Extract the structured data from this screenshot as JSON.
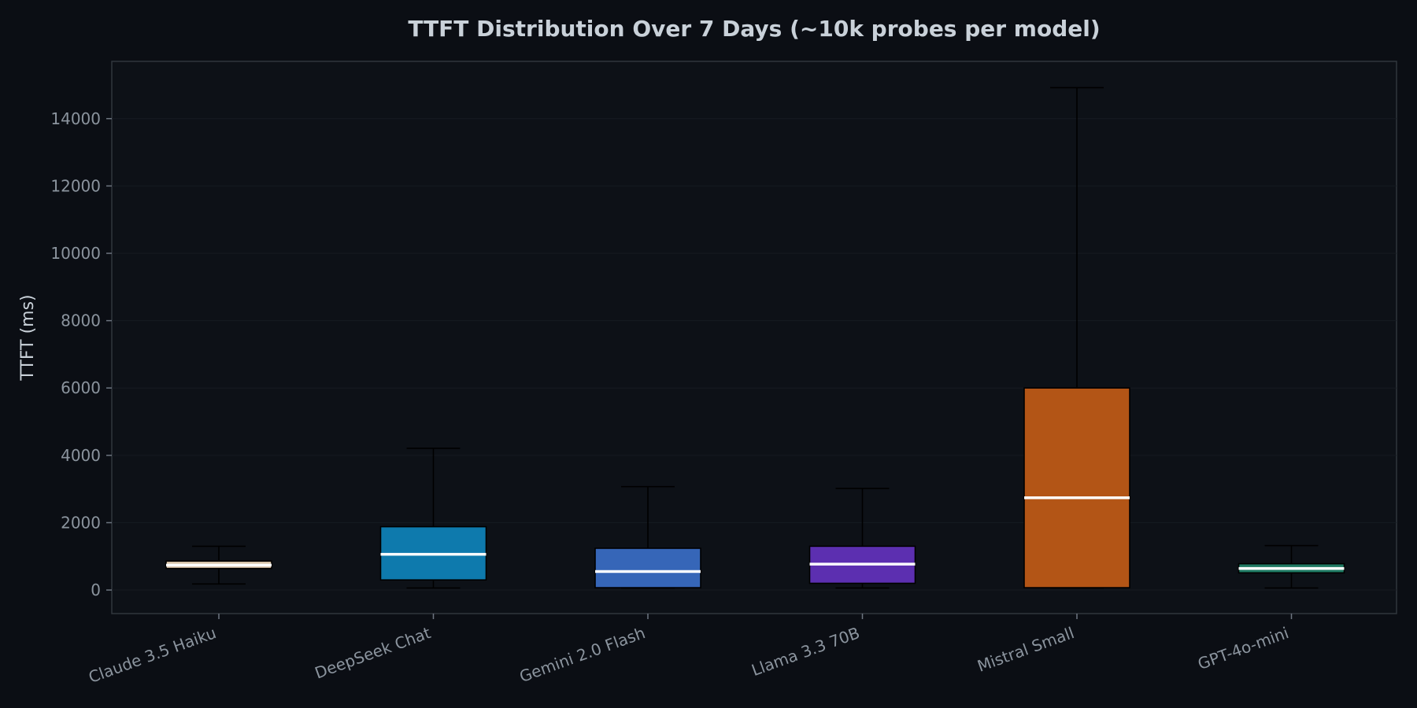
{
  "chart_data": {
    "type": "box",
    "title": "TTFT Distribution Over 7 Days (~10k probes per model)",
    "xlabel": "",
    "ylabel": "TTFT (ms)",
    "ylim": [
      -700,
      15700
    ],
    "yticks": [
      0,
      2000,
      4000,
      6000,
      8000,
      10000,
      12000,
      14000
    ],
    "grid": true,
    "categories": [
      "Claude 3.5 Haiku",
      "DeepSeek Chat",
      "Gemini 2.0 Flash",
      "Llama 3.3 70B",
      "Mistral Small",
      "GPT-4o-mini"
    ],
    "boxes": [
      {
        "name": "Claude 3.5 Haiku",
        "whisker_low": 180,
        "q1": 640,
        "median": 740,
        "q3": 860,
        "whisker_high": 1300,
        "color": "#d8c3a8"
      },
      {
        "name": "DeepSeek Chat",
        "whisker_low": 60,
        "q1": 300,
        "median": 1060,
        "q3": 1880,
        "whisker_high": 4210,
        "color": "#0e7aad"
      },
      {
        "name": "Gemini 2.0 Flash",
        "whisker_low": 60,
        "q1": 70,
        "median": 550,
        "q3": 1240,
        "whisker_high": 3070,
        "color": "#3666b8"
      },
      {
        "name": "Llama 3.3 70B",
        "whisker_low": 60,
        "q1": 200,
        "median": 770,
        "q3": 1300,
        "whisker_high": 3020,
        "color": "#5c2fb0"
      },
      {
        "name": "Mistral Small",
        "whisker_low": 60,
        "q1": 70,
        "median": 2740,
        "q3": 6000,
        "whisker_high": 14920,
        "color": "#b35516"
      },
      {
        "name": "GPT-4o-mini",
        "whisker_low": 60,
        "q1": 510,
        "median": 640,
        "q3": 780,
        "whisker_high": 1320,
        "color": "#1f7a63"
      }
    ]
  }
}
